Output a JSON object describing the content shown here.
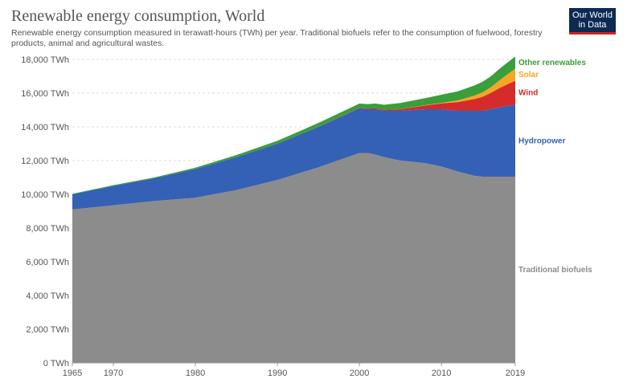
{
  "header": {
    "title": "Renewable energy consumption, World",
    "subtitle": "Renewable energy consumption measured in terawatt-hours (TWh) per year. Traditional biofuels refer to the consumption of fuelwood, forestry products, animal and agricultural wastes.",
    "logo_line1": "Our World",
    "logo_line2": "in Data",
    "logo_color": "#0c2a52",
    "logo_accent": "#ce261e"
  },
  "chart_data": {
    "type": "area",
    "stacked": true,
    "x": [
      1965,
      1970,
      1975,
      1980,
      1985,
      1990,
      1995,
      2000,
      2001,
      2002,
      2003,
      2005,
      2008,
      2010,
      2012,
      2014,
      2015,
      2016,
      2017,
      2018,
      2019
    ],
    "xlim": [
      1965,
      2019
    ],
    "x_ticks": [
      "1965",
      "1970",
      "1980",
      "1990",
      "2000",
      "2010",
      "2019"
    ],
    "ylim": [
      0,
      18000
    ],
    "y_ticks": [
      "0 TWh",
      "2,000 TWh",
      "4,000 TWh",
      "6,000 TWh",
      "8,000 TWh",
      "10,000 TWh",
      "12,000 TWh",
      "14,000 TWh",
      "16,000 TWh",
      "18,000 TWh"
    ],
    "grid": "horizontal-dashed",
    "legend": "right, inline labels",
    "series": [
      {
        "name": "Traditional biofuels",
        "color": "#8c8c8c",
        "values": [
          9100,
          9350,
          9600,
          9800,
          10250,
          10850,
          11600,
          12450,
          12450,
          12350,
          12200,
          12000,
          11850,
          11650,
          11350,
          11100,
          11050,
          11050,
          11050,
          11050,
          11050
        ]
      },
      {
        "name": "Hydropower",
        "color": "#3461b5",
        "values": [
          900,
          1150,
          1350,
          1700,
          1950,
          2150,
          2400,
          2650,
          2600,
          2700,
          2750,
          2950,
          3200,
          3400,
          3600,
          3850,
          3900,
          4000,
          4100,
          4200,
          4250
        ]
      },
      {
        "name": "Wind",
        "color": "#d62b2b",
        "values": [
          0,
          0,
          0,
          0,
          0,
          0,
          10,
          30,
          40,
          50,
          60,
          100,
          220,
          340,
          520,
          700,
          830,
          960,
          1130,
          1270,
          1430
        ]
      },
      {
        "name": "Solar",
        "color": "#f5a623",
        "values": [
          0,
          0,
          0,
          0,
          0,
          0,
          0,
          0,
          0,
          0,
          0,
          5,
          15,
          35,
          100,
          200,
          260,
          330,
          450,
          580,
          720
        ]
      },
      {
        "name": "Other renewables",
        "color": "#3a9e3a",
        "values": [
          30,
          40,
          50,
          80,
          130,
          170,
          220,
          250,
          260,
          280,
          300,
          360,
          420,
          480,
          540,
          600,
          630,
          650,
          680,
          700,
          720
        ]
      }
    ]
  }
}
